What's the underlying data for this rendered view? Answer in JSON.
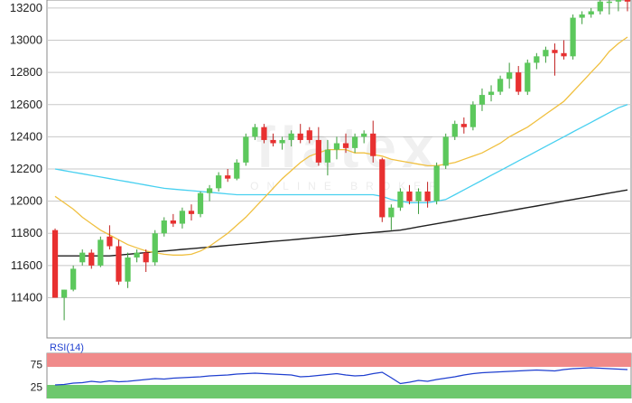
{
  "watermark": {
    "brand": "flatex",
    "tagline": "ONLINE BROKER"
  },
  "rsi": {
    "label": "RSI(14)",
    "ticks": [
      75,
      25
    ],
    "range": [
      0,
      100
    ],
    "zones": [
      70,
      30
    ],
    "colors": {
      "overbought": "#f08a8a",
      "oversold": "#6dc86d",
      "line": "#2040d0"
    },
    "values": [
      30,
      31,
      34,
      35,
      38,
      36,
      39,
      37,
      38,
      40,
      42,
      44,
      43,
      45,
      46,
      47,
      48,
      50,
      51,
      52,
      54,
      55,
      56,
      55,
      54,
      53,
      52,
      48,
      49,
      51,
      53,
      55,
      52,
      50,
      51,
      55,
      58,
      46,
      33,
      36,
      40,
      38,
      42,
      45,
      48,
      52,
      55,
      57,
      58,
      59,
      60,
      61,
      62,
      63,
      62,
      61,
      64,
      66,
      67,
      68,
      67,
      66,
      65,
      64
    ]
  },
  "chart_data": {
    "type": "candlestick",
    "ylim": [
      11150,
      13250
    ],
    "yticks": [
      11400,
      11600,
      11800,
      12000,
      12200,
      12400,
      12600,
      12800,
      13000,
      13200
    ],
    "grid": true,
    "colors": {
      "up": "#5cc85c",
      "down": "#e83030",
      "ma_fast": "#f0c040",
      "ma_mid": "#48d0f0",
      "ma_slow": "#202020"
    },
    "candles": [
      [
        11820,
        11830,
        11400,
        11400
      ],
      [
        11400,
        11450,
        11260,
        11450
      ],
      [
        11450,
        11600,
        11440,
        11580
      ],
      [
        11620,
        11700,
        11600,
        11680
      ],
      [
        11680,
        11700,
        11580,
        11600
      ],
      [
        11600,
        11780,
        11590,
        11760
      ],
      [
        11780,
        11850,
        11700,
        11720
      ],
      [
        11720,
        11760,
        11480,
        11500
      ],
      [
        11500,
        11680,
        11460,
        11650
      ],
      [
        11650,
        11700,
        11620,
        11680
      ],
      [
        11680,
        11700,
        11560,
        11620
      ],
      [
        11620,
        11820,
        11600,
        11800
      ],
      [
        11800,
        11900,
        11780,
        11880
      ],
      [
        11880,
        11920,
        11840,
        11860
      ],
      [
        11860,
        11960,
        11830,
        11940
      ],
      [
        11940,
        11980,
        11880,
        11920
      ],
      [
        11920,
        12060,
        11900,
        12050
      ],
      [
        12050,
        12100,
        12000,
        12080
      ],
      [
        12080,
        12180,
        12060,
        12160
      ],
      [
        12160,
        12200,
        12120,
        12140
      ],
      [
        12140,
        12260,
        12130,
        12240
      ],
      [
        12240,
        12420,
        12220,
        12400
      ],
      [
        12400,
        12480,
        12380,
        12460
      ],
      [
        12460,
        12480,
        12360,
        12380
      ],
      [
        12380,
        12420,
        12340,
        12360
      ],
      [
        12360,
        12400,
        12320,
        12380
      ],
      [
        12380,
        12440,
        12340,
        12420
      ],
      [
        12420,
        12480,
        12360,
        12380
      ],
      [
        12440,
        12460,
        12360,
        12380
      ],
      [
        12380,
        12460,
        12220,
        12240
      ],
      [
        12240,
        12380,
        12160,
        12320
      ],
      [
        12320,
        12400,
        12260,
        12360
      ],
      [
        12360,
        12420,
        12300,
        12330
      ],
      [
        12330,
        12420,
        12300,
        12400
      ],
      [
        12400,
        12440,
        12360,
        12420
      ],
      [
        12420,
        12500,
        12240,
        12280
      ],
      [
        12260,
        12270,
        11870,
        11900
      ],
      [
        11900,
        11980,
        11820,
        11960
      ],
      [
        11960,
        12080,
        11940,
        12060
      ],
      [
        12060,
        12100,
        11980,
        12000
      ],
      [
        12000,
        12080,
        11920,
        12060
      ],
      [
        12060,
        12120,
        11960,
        12000
      ],
      [
        12000,
        12240,
        11980,
        12220
      ],
      [
        12220,
        12420,
        12200,
        12400
      ],
      [
        12400,
        12500,
        12380,
        12480
      ],
      [
        12480,
        12520,
        12420,
        12460
      ],
      [
        12460,
        12620,
        12440,
        12600
      ],
      [
        12600,
        12700,
        12560,
        12660
      ],
      [
        12660,
        12720,
        12620,
        12680
      ],
      [
        12680,
        12780,
        12660,
        12760
      ],
      [
        12760,
        12860,
        12700,
        12800
      ],
      [
        12800,
        12840,
        12660,
        12680
      ],
      [
        12680,
        12880,
        12660,
        12860
      ],
      [
        12860,
        12920,
        12820,
        12900
      ],
      [
        12900,
        12960,
        12860,
        12940
      ],
      [
        12940,
        12980,
        12780,
        12920
      ],
      [
        12920,
        13000,
        12880,
        12900
      ],
      [
        12900,
        13160,
        12880,
        13140
      ],
      [
        13140,
        13180,
        13100,
        13160
      ],
      [
        13160,
        13200,
        13140,
        13180
      ],
      [
        13180,
        13260,
        13160,
        13240
      ],
      [
        13240,
        13260,
        13160,
        13240
      ],
      [
        13240,
        13280,
        13180,
        13260
      ],
      [
        13260,
        13280,
        13180,
        13240
      ]
    ],
    "ma_fast": [
      12030,
      11990,
      11950,
      11900,
      11860,
      11820,
      11790,
      11760,
      11730,
      11710,
      11690,
      11680,
      11670,
      11665,
      11665,
      11670,
      11690,
      11720,
      11760,
      11800,
      11850,
      11900,
      11960,
      12020,
      12080,
      12140,
      12190,
      12240,
      12280,
      12300,
      12320,
      12320,
      12320,
      12300,
      12300,
      12290,
      12280,
      12260,
      12250,
      12240,
      12230,
      12220,
      12220,
      12230,
      12240,
      12260,
      12280,
      12300,
      12330,
      12360,
      12400,
      12430,
      12460,
      12500,
      12540,
      12580,
      12620,
      12680,
      12740,
      12800,
      12860,
      12930,
      12980,
      13020
    ],
    "ma_mid": [
      12200,
      12190,
      12180,
      12170,
      12160,
      12150,
      12140,
      12130,
      12120,
      12110,
      12100,
      12090,
      12080,
      12075,
      12070,
      12065,
      12060,
      12055,
      12050,
      12045,
      12040,
      12040,
      12040,
      12040,
      12040,
      12040,
      12040,
      12040,
      12040,
      12040,
      12040,
      12040,
      12040,
      12040,
      12040,
      12040,
      12030,
      12010,
      12000,
      11990,
      11990,
      11990,
      12000,
      12010,
      12040,
      12070,
      12100,
      12130,
      12160,
      12190,
      12220,
      12250,
      12280,
      12310,
      12340,
      12370,
      12400,
      12430,
      12460,
      12490,
      12520,
      12550,
      12580,
      12600
    ],
    "ma_slow": [
      11660,
      11660,
      11660,
      11660,
      11660,
      11660,
      11660,
      11665,
      11670,
      11675,
      11680,
      11685,
      11690,
      11695,
      11700,
      11705,
      11710,
      11715,
      11720,
      11725,
      11730,
      11735,
      11740,
      11745,
      11750,
      11755,
      11760,
      11765,
      11770,
      11775,
      11780,
      11785,
      11790,
      11795,
      11800,
      11805,
      11810,
      11815,
      11820,
      11830,
      11840,
      11850,
      11860,
      11870,
      11880,
      11890,
      11900,
      11910,
      11920,
      11930,
      11940,
      11950,
      11960,
      11970,
      11980,
      11990,
      12000,
      12010,
      12020,
      12030,
      12040,
      12050,
      12060,
      12070
    ]
  }
}
